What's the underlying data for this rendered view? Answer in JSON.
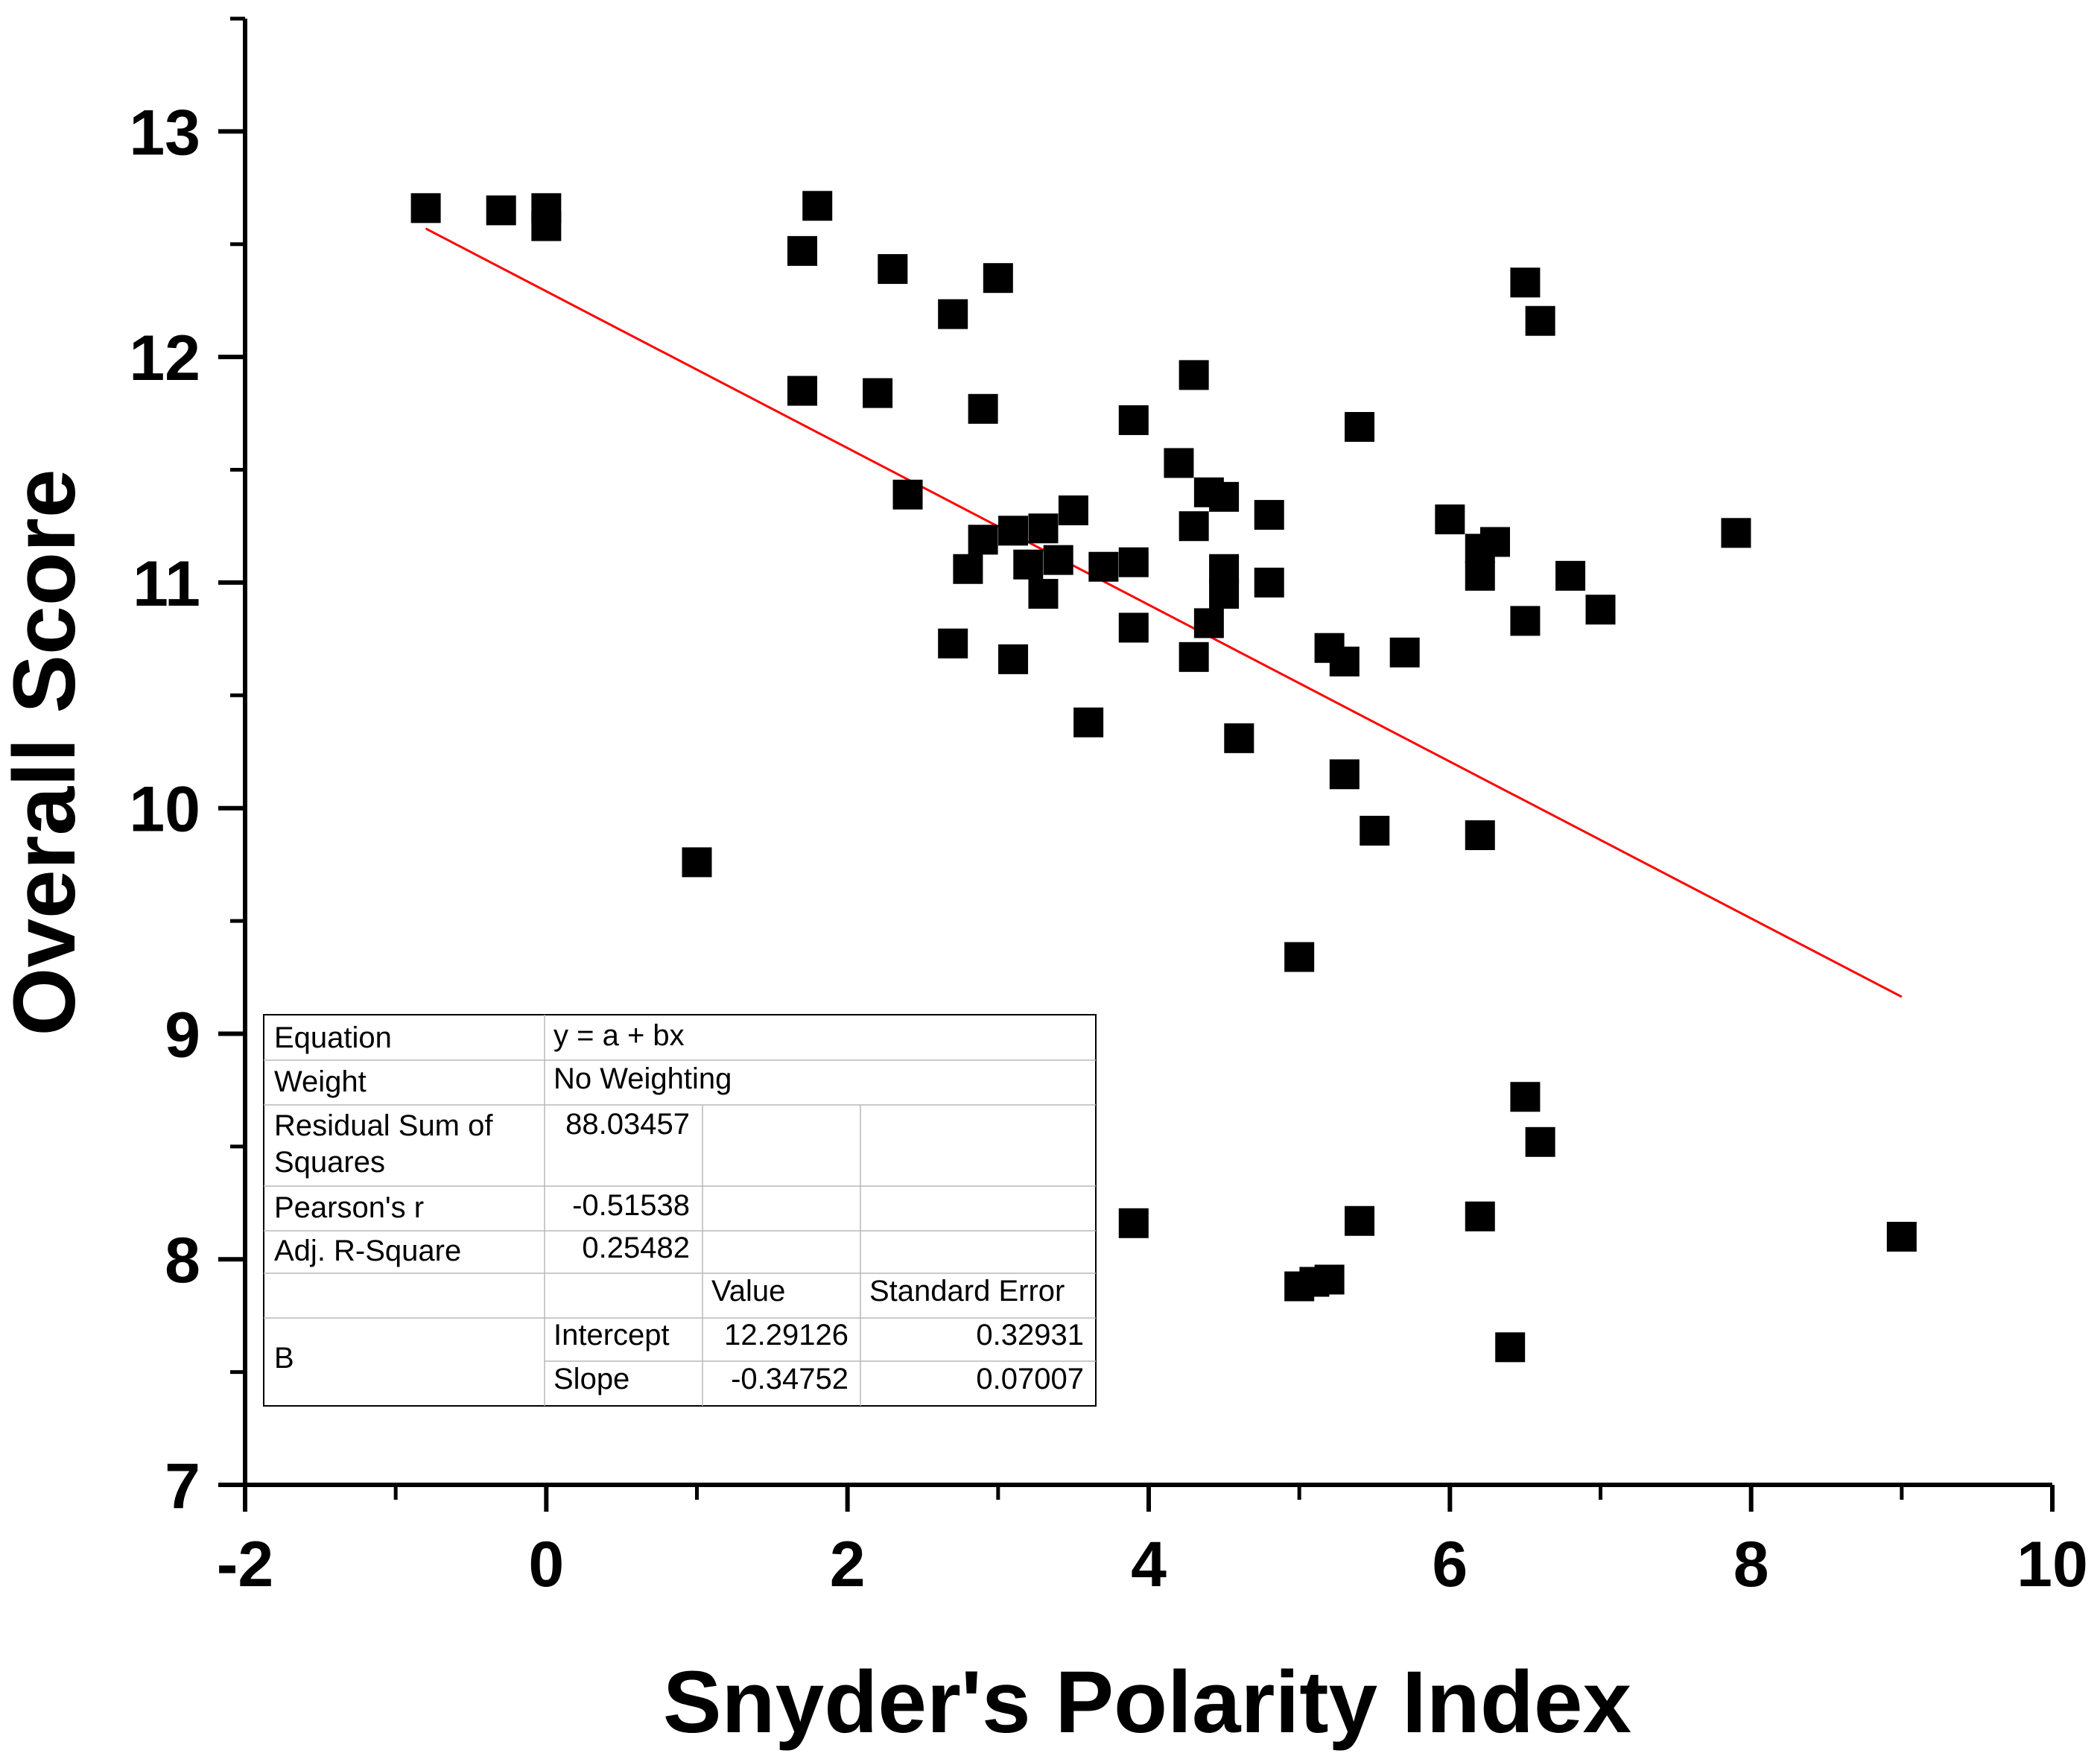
{
  "chart_data": {
    "type": "scatter",
    "xlabel": "Snyder's Polarity Index",
    "ylabel": "Overall Score",
    "xlim": [
      -2,
      10
    ],
    "ylim": [
      7,
      13.5
    ],
    "x_ticks": [
      -2,
      0,
      2,
      4,
      6,
      8,
      10
    ],
    "y_ticks": [
      7,
      8,
      9,
      10,
      11,
      12,
      13
    ],
    "x_tick_labels": [
      "-2",
      "0",
      "2",
      "4",
      "6",
      "8",
      "10"
    ],
    "y_tick_labels": [
      "7",
      "8",
      "9",
      "10",
      "11",
      "12",
      "13"
    ],
    "marker": "square",
    "marker_color": "#000000",
    "points": [
      [
        -0.8,
        12.66
      ],
      [
        -0.3,
        12.65
      ],
      [
        0.0,
        12.66
      ],
      [
        0.0,
        12.58
      ],
      [
        1.0,
        9.76
      ],
      [
        1.7,
        12.47
      ],
      [
        1.7,
        11.85
      ],
      [
        1.8,
        12.67
      ],
      [
        2.2,
        11.84
      ],
      [
        2.3,
        12.39
      ],
      [
        2.4,
        11.39
      ],
      [
        2.7,
        12.19
      ],
      [
        2.7,
        10.73
      ],
      [
        2.8,
        11.06
      ],
      [
        2.9,
        11.77
      ],
      [
        2.9,
        11.19
      ],
      [
        3.0,
        12.35
      ],
      [
        3.1,
        10.66
      ],
      [
        3.1,
        11.23
      ],
      [
        3.2,
        11.08
      ],
      [
        3.3,
        11.24
      ],
      [
        3.3,
        10.95
      ],
      [
        3.4,
        11.1
      ],
      [
        3.5,
        11.32
      ],
      [
        3.6,
        10.38
      ],
      [
        3.7,
        11.07
      ],
      [
        3.9,
        11.72
      ],
      [
        3.9,
        11.09
      ],
      [
        3.9,
        10.8
      ],
      [
        3.9,
        8.16
      ],
      [
        4.2,
        11.53
      ],
      [
        4.3,
        11.92
      ],
      [
        4.3,
        11.25
      ],
      [
        4.3,
        10.67
      ],
      [
        4.4,
        11.4
      ],
      [
        4.4,
        10.82
      ],
      [
        4.5,
        11.38
      ],
      [
        4.5,
        11.06
      ],
      [
        4.5,
        10.95
      ],
      [
        4.6,
        10.31
      ],
      [
        4.8,
        11.3
      ],
      [
        4.8,
        11.0
      ],
      [
        5.0,
        9.34
      ],
      [
        5.0,
        7.88
      ],
      [
        5.1,
        7.9
      ],
      [
        5.2,
        7.91
      ],
      [
        5.2,
        10.71
      ],
      [
        5.3,
        10.65
      ],
      [
        5.3,
        10.15
      ],
      [
        5.4,
        11.69
      ],
      [
        5.4,
        8.17
      ],
      [
        5.5,
        9.9
      ],
      [
        5.7,
        10.69
      ],
      [
        6.0,
        11.28
      ],
      [
        6.2,
        11.15
      ],
      [
        6.2,
        11.03
      ],
      [
        6.2,
        9.88
      ],
      [
        6.2,
        8.19
      ],
      [
        6.3,
        11.18
      ],
      [
        6.4,
        7.61
      ],
      [
        6.5,
        12.33
      ],
      [
        6.5,
        10.83
      ],
      [
        6.5,
        8.72
      ],
      [
        6.6,
        12.16
      ],
      [
        6.6,
        8.52
      ],
      [
        6.8,
        11.03
      ],
      [
        7.0,
        10.88
      ],
      [
        7.9,
        11.22
      ],
      [
        9.0,
        8.1
      ]
    ],
    "regression": {
      "color": "#ff0000",
      "x_start": -0.8,
      "x_end": 9.0,
      "intercept": 12.29126,
      "slope": -0.34752
    },
    "stats_table": {
      "equation_label": "Equation",
      "equation_value": "y = a + bx",
      "weight_label": "Weight",
      "weight_value": "No Weighting",
      "rss_label_line1": "Residual Sum of",
      "rss_label_line2": "Squares",
      "rss_value": "88.03457",
      "pearson_label": "Pearson's r",
      "pearson_value": "-0.51538",
      "adjr2_label": "Adj. R-Square",
      "adjr2_value": "0.25482",
      "value_header": "Value",
      "stderr_header": "Standard Error",
      "group_label": "B",
      "intercept_label": "Intercept",
      "intercept_value": "12.29126",
      "intercept_se": "0.32931",
      "slope_label": "Slope",
      "slope_value": "-0.34752",
      "slope_se": "0.07007"
    }
  }
}
